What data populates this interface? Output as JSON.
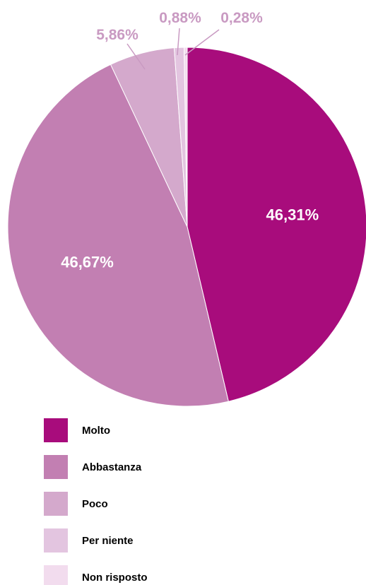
{
  "chart_data": {
    "type": "pie",
    "slices": [
      {
        "label": "Molto",
        "value": 46.31,
        "value_label": "46,31%",
        "color": "#a80c7c",
        "label_position": "inside"
      },
      {
        "label": "Abbastanza",
        "value": 46.67,
        "value_label": "46,67%",
        "color": "#c27fb2",
        "label_position": "inside"
      },
      {
        "label": "Poco",
        "value": 5.86,
        "value_label": "5,86%",
        "color": "#d4a9cc",
        "label_position": "outside"
      },
      {
        "label": "Per niente",
        "value": 0.88,
        "value_label": "0,88%",
        "color": "#e3c5e0",
        "label_position": "outside"
      },
      {
        "label": "Non risposto",
        "value": 0.28,
        "value_label": "0,28%",
        "color": "#f2dcee",
        "label_position": "outside"
      }
    ],
    "start_angle": "12 o'clock",
    "direction": "clockwise",
    "legend_position": "bottom-left",
    "outside_label_color": "#c99ac2"
  }
}
